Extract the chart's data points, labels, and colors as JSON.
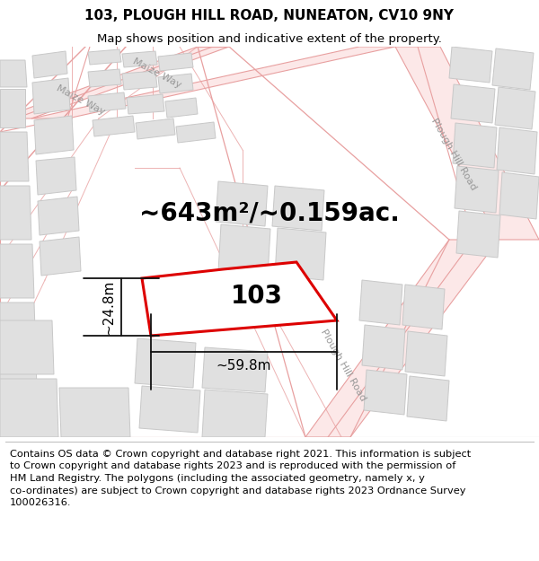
{
  "title_line1": "103, PLOUGH HILL ROAD, NUNEATON, CV10 9NY",
  "title_line2": "Map shows position and indicative extent of the property.",
  "area_text": "~643m²/~0.159ac.",
  "label_103": "103",
  "dim_height": "~24.8m",
  "dim_width": "~59.8m",
  "road_label_plough_upper": "Plough Hill Road",
  "road_label_plough_lower": "Plough Hill Road",
  "road_label_maize": "Maize Way",
  "copyright_text": "Contains OS data © Crown copyright and database right 2021. This information is subject\nto Crown copyright and database rights 2023 and is reproduced with the permission of\nHM Land Registry. The polygons (including the associated geometry, namely x, y\nco-ordinates) are subject to Crown copyright and database rights 2023 Ordnance Survey\n100026316.",
  "bg_color": "#ffffff",
  "map_bg": "#f9f9f9",
  "road_outline_color": "#e8a0a0",
  "road_fill_color": "#fce8e8",
  "building_fill": "#e0e0e0",
  "building_edge": "#c8c8c8",
  "property_fill": "#ffffff",
  "property_edge": "#dd0000",
  "property_lw": 2.2,
  "dim_color": "#111111",
  "title_fontsize": 11,
  "subtitle_fontsize": 9.5,
  "area_fontsize": 20,
  "label_fontsize": 20,
  "dim_fontsize": 11,
  "road_label_fontsize": 8,
  "copyright_fontsize": 8.2
}
